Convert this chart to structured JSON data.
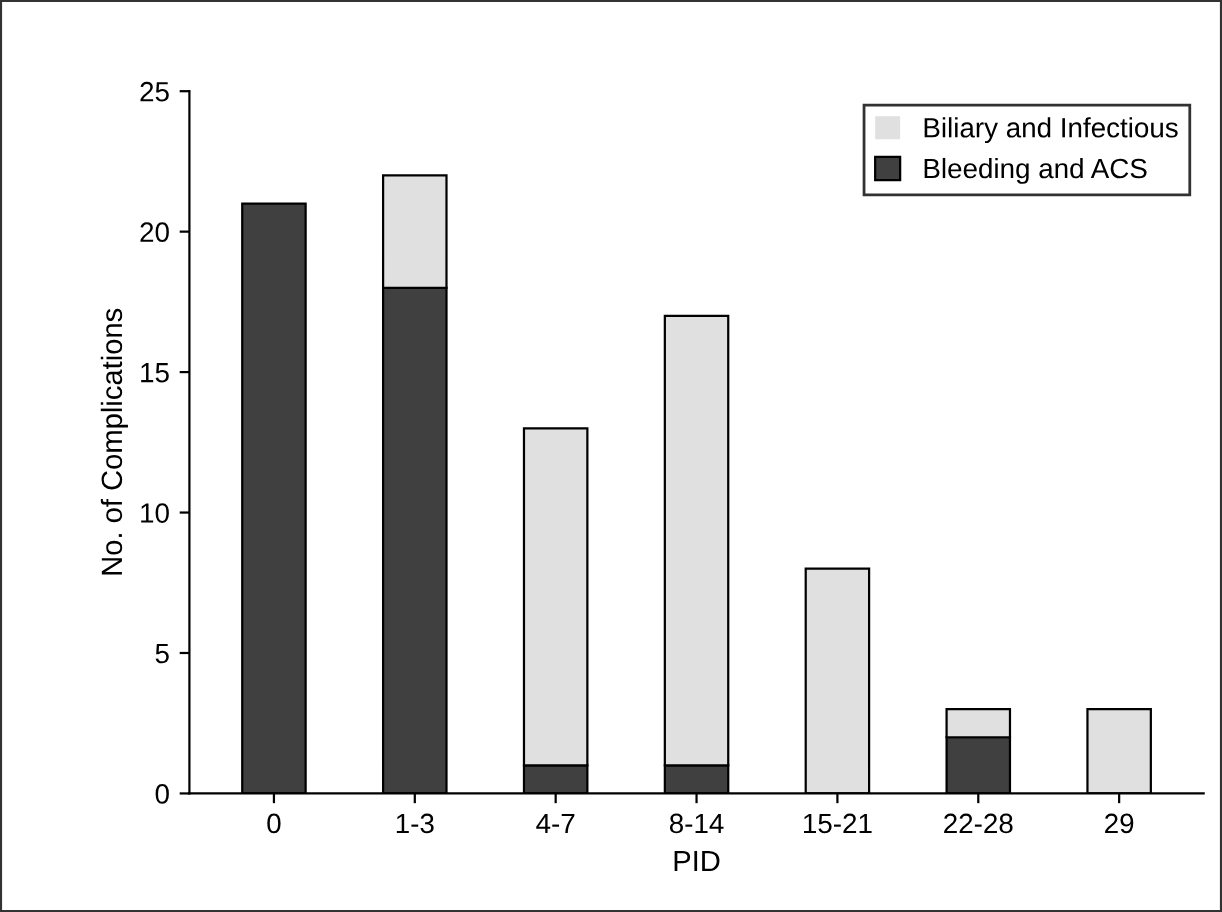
{
  "chart_data": {
    "type": "bar",
    "xlabel": "PID",
    "ylabel": "No. of Complications",
    "categories": [
      "0",
      "1-3",
      "4-7",
      "8-14",
      "15-21",
      "22-28",
      "29"
    ],
    "stacked": true,
    "series": [
      {
        "name": "Bleeding and ACS",
        "color": "#404040",
        "values": [
          21,
          18,
          1,
          1,
          0,
          2,
          0
        ]
      },
      {
        "name": "Biliary and Infectious",
        "color": "#e0e0e0",
        "values": [
          0,
          4,
          12,
          16,
          8,
          1,
          3
        ]
      }
    ],
    "ylim": [
      0,
      25
    ],
    "yticks": [
      0,
      5,
      10,
      15,
      20,
      25
    ],
    "grid": false,
    "legend": "top right"
  }
}
